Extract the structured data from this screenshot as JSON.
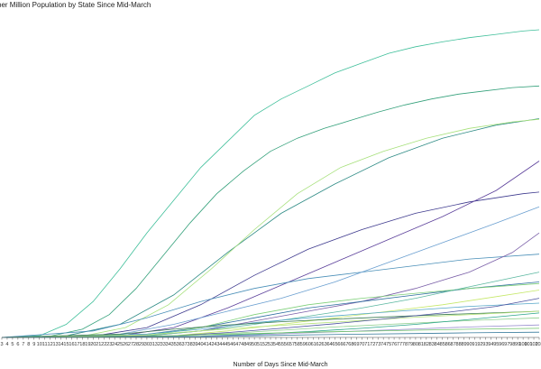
{
  "chart_data": {
    "type": "line",
    "title": "per Million Population by State Since Mid-March",
    "xlabel": "Number of Days Since Mid-March",
    "ylabel": "",
    "x_range": [
      3,
      103
    ],
    "x_tick_labels": [
      "3",
      "4",
      "5",
      "6",
      "7",
      "8",
      "9",
      "10",
      "11",
      "12",
      "13",
      "14",
      "15",
      "16",
      "17",
      "18",
      "19",
      "20",
      "21",
      "22",
      "23",
      "24",
      "25",
      "26",
      "27",
      "28",
      "29",
      "30",
      "31",
      "32",
      "33",
      "34",
      "35",
      "36",
      "37",
      "38",
      "39",
      "40",
      "41",
      "42",
      "43",
      "44",
      "45",
      "46",
      "47",
      "48",
      "49",
      "50",
      "51",
      "52",
      "53",
      "54",
      "55",
      "56",
      "57",
      "58",
      "59",
      "60",
      "61",
      "62",
      "63",
      "64",
      "65",
      "66",
      "67",
      "68",
      "69",
      "70",
      "71",
      "72",
      "73",
      "74",
      "75",
      "76",
      "77",
      "78",
      "79",
      "80",
      "81",
      "82",
      "83",
      "84",
      "85",
      "86",
      "87",
      "88",
      "89",
      "90",
      "91",
      "92",
      "93",
      "94",
      "95",
      "96",
      "97",
      "98",
      "99",
      "100",
      "101",
      "102",
      "103"
    ],
    "y_range": [
      0,
      1000
    ],
    "grid": false,
    "legend": "none",
    "series": [
      {
        "color": "#3fbf9a",
        "values": [
          [
            3,
            0
          ],
          [
            10,
            5
          ],
          [
            15,
            40
          ],
          [
            20,
            110
          ],
          [
            25,
            210
          ],
          [
            30,
            320
          ],
          [
            35,
            420
          ],
          [
            40,
            520
          ],
          [
            45,
            600
          ],
          [
            50,
            680
          ],
          [
            55,
            730
          ],
          [
            60,
            770
          ],
          [
            65,
            810
          ],
          [
            70,
            840
          ],
          [
            75,
            870
          ],
          [
            80,
            890
          ],
          [
            85,
            905
          ],
          [
            90,
            918
          ],
          [
            95,
            928
          ],
          [
            100,
            938
          ],
          [
            103,
            942
          ]
        ]
      },
      {
        "color": "#33a07a",
        "values": [
          [
            3,
            0
          ],
          [
            12,
            4
          ],
          [
            18,
            25
          ],
          [
            23,
            70
          ],
          [
            28,
            150
          ],
          [
            33,
            250
          ],
          [
            38,
            350
          ],
          [
            43,
            440
          ],
          [
            48,
            510
          ],
          [
            53,
            570
          ],
          [
            58,
            610
          ],
          [
            63,
            640
          ],
          [
            68,
            665
          ],
          [
            73,
            690
          ],
          [
            78,
            712
          ],
          [
            83,
            730
          ],
          [
            88,
            745
          ],
          [
            93,
            755
          ],
          [
            98,
            765
          ],
          [
            103,
            770
          ]
        ]
      },
      {
        "color": "#2e8b85",
        "values": [
          [
            3,
            0
          ],
          [
            15,
            5
          ],
          [
            25,
            40
          ],
          [
            35,
            130
          ],
          [
            45,
            260
          ],
          [
            55,
            380
          ],
          [
            65,
            470
          ],
          [
            75,
            550
          ],
          [
            85,
            610
          ],
          [
            95,
            650
          ],
          [
            103,
            670
          ]
        ]
      },
      {
        "color": "#a6e07a",
        "values": [
          [
            3,
            0
          ],
          [
            18,
            4
          ],
          [
            26,
            30
          ],
          [
            34,
            100
          ],
          [
            42,
            210
          ],
          [
            50,
            330
          ],
          [
            58,
            440
          ],
          [
            66,
            520
          ],
          [
            74,
            570
          ],
          [
            82,
            610
          ],
          [
            90,
            640
          ],
          [
            98,
            660
          ],
          [
            103,
            668
          ]
        ]
      },
      {
        "color": "#3e3a8e",
        "values": [
          [
            3,
            0
          ],
          [
            20,
            4
          ],
          [
            30,
            30
          ],
          [
            40,
            100
          ],
          [
            50,
            190
          ],
          [
            60,
            270
          ],
          [
            70,
            330
          ],
          [
            80,
            380
          ],
          [
            90,
            415
          ],
          [
            100,
            440
          ],
          [
            103,
            445
          ]
        ]
      },
      {
        "color": "#5b3f9a",
        "values": [
          [
            3,
            0
          ],
          [
            25,
            5
          ],
          [
            35,
            30
          ],
          [
            45,
            90
          ],
          [
            55,
            160
          ],
          [
            65,
            230
          ],
          [
            75,
            300
          ],
          [
            85,
            370
          ],
          [
            95,
            450
          ],
          [
            103,
            540
          ]
        ]
      },
      {
        "color": "#4a8fb8",
        "values": [
          [
            3,
            0
          ],
          [
            20,
            20
          ],
          [
            30,
            60
          ],
          [
            40,
            110
          ],
          [
            50,
            150
          ],
          [
            60,
            180
          ],
          [
            70,
            200
          ],
          [
            80,
            220
          ],
          [
            90,
            240
          ],
          [
            103,
            255
          ]
        ]
      },
      {
        "color": "#6a9fd0",
        "values": [
          [
            3,
            0
          ],
          [
            25,
            10
          ],
          [
            35,
            40
          ],
          [
            45,
            80
          ],
          [
            55,
            120
          ],
          [
            65,
            170
          ],
          [
            75,
            230
          ],
          [
            85,
            290
          ],
          [
            95,
            350
          ],
          [
            103,
            400
          ]
        ]
      },
      {
        "color": "#7a5fa8",
        "values": [
          [
            3,
            0
          ],
          [
            30,
            5
          ],
          [
            40,
            20
          ],
          [
            50,
            50
          ],
          [
            60,
            80
          ],
          [
            70,
            110
          ],
          [
            80,
            150
          ],
          [
            90,
            200
          ],
          [
            98,
            260
          ],
          [
            103,
            320
          ]
        ]
      },
      {
        "color": "#2f6fa0",
        "values": [
          [
            3,
            0
          ],
          [
            30,
            10
          ],
          [
            40,
            30
          ],
          [
            50,
            60
          ],
          [
            60,
            90
          ],
          [
            70,
            110
          ],
          [
            80,
            130
          ],
          [
            90,
            150
          ],
          [
            103,
            170
          ]
        ]
      },
      {
        "color": "#7fd07a",
        "values": [
          [
            3,
            0
          ],
          [
            30,
            5
          ],
          [
            40,
            30
          ],
          [
            50,
            70
          ],
          [
            60,
            100
          ],
          [
            70,
            120
          ],
          [
            80,
            135
          ],
          [
            90,
            150
          ],
          [
            103,
            165
          ]
        ]
      },
      {
        "color": "#5ab7a0",
        "values": [
          [
            3,
            0
          ],
          [
            30,
            5
          ],
          [
            40,
            20
          ],
          [
            50,
            40
          ],
          [
            60,
            65
          ],
          [
            70,
            90
          ],
          [
            80,
            120
          ],
          [
            90,
            155
          ],
          [
            103,
            200
          ]
        ]
      },
      {
        "color": "#c6e86a",
        "values": [
          [
            3,
            0
          ],
          [
            35,
            5
          ],
          [
            45,
            20
          ],
          [
            55,
            40
          ],
          [
            65,
            60
          ],
          [
            75,
            80
          ],
          [
            85,
            100
          ],
          [
            95,
            125
          ],
          [
            103,
            145
          ]
        ]
      },
      {
        "color": "#55a6c8",
        "values": [
          [
            3,
            0
          ],
          [
            30,
            10
          ],
          [
            40,
            25
          ],
          [
            50,
            45
          ],
          [
            60,
            60
          ],
          [
            70,
            72
          ],
          [
            80,
            84
          ],
          [
            90,
            95
          ],
          [
            103,
            105
          ]
        ]
      },
      {
        "color": "#3b7b52",
        "values": [
          [
            3,
            0
          ],
          [
            25,
            10
          ],
          [
            35,
            25
          ],
          [
            45,
            38
          ],
          [
            55,
            48
          ],
          [
            65,
            56
          ],
          [
            75,
            63
          ],
          [
            85,
            70
          ],
          [
            103,
            80
          ]
        ]
      },
      {
        "color": "#b5e27a",
        "values": [
          [
            3,
            0
          ],
          [
            30,
            8
          ],
          [
            40,
            20
          ],
          [
            50,
            32
          ],
          [
            60,
            42
          ],
          [
            70,
            52
          ],
          [
            80,
            62
          ],
          [
            90,
            70
          ],
          [
            103,
            80
          ]
        ]
      },
      {
        "color": "#4c52a0",
        "values": [
          [
            3,
            0
          ],
          [
            35,
            5
          ],
          [
            45,
            15
          ],
          [
            55,
            28
          ],
          [
            65,
            42
          ],
          [
            75,
            58
          ],
          [
            85,
            75
          ],
          [
            95,
            95
          ],
          [
            103,
            120
          ]
        ]
      },
      {
        "color": "#8fcf8e",
        "values": [
          [
            3,
            0
          ],
          [
            35,
            4
          ],
          [
            45,
            12
          ],
          [
            55,
            22
          ],
          [
            65,
            32
          ],
          [
            75,
            40
          ],
          [
            85,
            48
          ],
          [
            95,
            55
          ],
          [
            103,
            60
          ]
        ]
      },
      {
        "color": "#2aa58a",
        "values": [
          [
            3,
            0
          ],
          [
            40,
            4
          ],
          [
            50,
            10
          ],
          [
            60,
            18
          ],
          [
            70,
            28
          ],
          [
            80,
            40
          ],
          [
            90,
            55
          ],
          [
            103,
            75
          ]
        ]
      },
      {
        "color": "#9a8fd0",
        "values": [
          [
            3,
            0
          ],
          [
            40,
            3
          ],
          [
            50,
            8
          ],
          [
            60,
            14
          ],
          [
            70,
            20
          ],
          [
            80,
            26
          ],
          [
            90,
            32
          ],
          [
            103,
            38
          ]
        ]
      },
      {
        "color": "#6fc36a",
        "values": [
          [
            3,
            0
          ],
          [
            30,
            3
          ],
          [
            40,
            8
          ],
          [
            50,
            12
          ],
          [
            60,
            16
          ],
          [
            70,
            19
          ],
          [
            80,
            22
          ],
          [
            90,
            25
          ],
          [
            103,
            28
          ]
        ]
      },
      {
        "color": "#367a9c",
        "values": [
          [
            3,
            0
          ],
          [
            40,
            2
          ],
          [
            50,
            5
          ],
          [
            60,
            8
          ],
          [
            70,
            10
          ],
          [
            80,
            12
          ],
          [
            90,
            14
          ],
          [
            103,
            16
          ]
        ]
      }
    ]
  }
}
